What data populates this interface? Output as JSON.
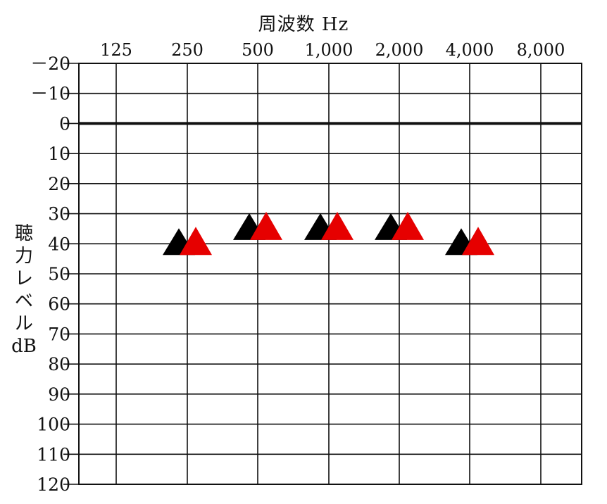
{
  "chart_data": {
    "type": "scatter",
    "title": "",
    "xlabel": "周波数 Hz",
    "ylabel_lines": [
      "聴",
      "力",
      "レ",
      "ベ",
      "ル",
      "dB"
    ],
    "x_categories": [
      "125",
      "250",
      "500",
      "1,000",
      "2,000",
      "4,000",
      "8,000"
    ],
    "y_ticks": [
      {
        "value": -20,
        "label": "－20"
      },
      {
        "value": -10,
        "label": "－10"
      },
      {
        "value": 0,
        "label": "0"
      },
      {
        "value": 10,
        "label": "10"
      },
      {
        "value": 20,
        "label": "20"
      },
      {
        "value": 30,
        "label": "30"
      },
      {
        "value": 40,
        "label": "40"
      },
      {
        "value": 50,
        "label": "50"
      },
      {
        "value": 60,
        "label": "60"
      },
      {
        "value": 70,
        "label": "70"
      },
      {
        "value": 80,
        "label": "80"
      },
      {
        "value": 90,
        "label": "90"
      },
      {
        "value": 100,
        "label": "100"
      },
      {
        "value": 110,
        "label": "110"
      },
      {
        "value": 120,
        "label": "120"
      }
    ],
    "ylim": [
      -20,
      120
    ],
    "y_inverted": true,
    "grid": true,
    "series": [
      {
        "color": "#000000",
        "marker": "triangle",
        "points": [
          {
            "x": "250",
            "y": 40
          },
          {
            "x": "500",
            "y": 35
          },
          {
            "x": "1,000",
            "y": 35
          },
          {
            "x": "2,000",
            "y": 35
          },
          {
            "x": "4,000",
            "y": 40
          }
        ]
      },
      {
        "color": "#e60000",
        "marker": "triangle",
        "points": [
          {
            "x": "250",
            "y": 40
          },
          {
            "x": "500",
            "y": 35
          },
          {
            "x": "1,000",
            "y": 35
          },
          {
            "x": "2,000",
            "y": 35
          },
          {
            "x": "4,000",
            "y": 40
          }
        ]
      }
    ]
  }
}
